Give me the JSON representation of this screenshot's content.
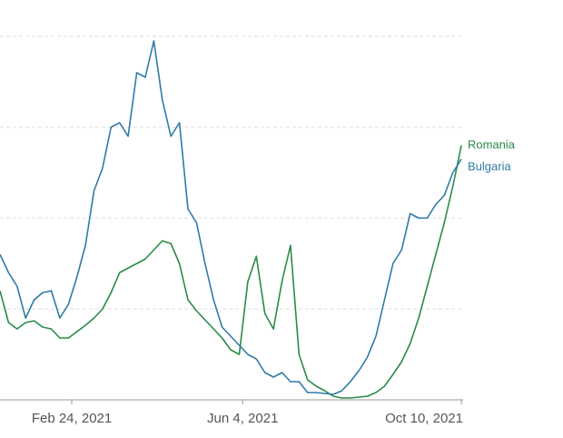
{
  "chart_data": {
    "type": "line",
    "x": [
      "2021-01-13",
      "2021-01-18",
      "2021-01-23",
      "2021-01-28",
      "2021-02-02",
      "2021-02-07",
      "2021-02-12",
      "2021-02-17",
      "2021-02-22",
      "2021-02-27",
      "2021-03-04",
      "2021-03-09",
      "2021-03-14",
      "2021-03-19",
      "2021-03-24",
      "2021-03-29",
      "2021-04-03",
      "2021-04-08",
      "2021-04-13",
      "2021-04-18",
      "2021-04-23",
      "2021-04-28",
      "2021-05-03",
      "2021-05-08",
      "2021-05-13",
      "2021-05-18",
      "2021-05-23",
      "2021-05-28",
      "2021-06-02",
      "2021-06-07",
      "2021-06-12",
      "2021-06-17",
      "2021-06-22",
      "2021-06-27",
      "2021-07-02",
      "2021-07-07",
      "2021-07-12",
      "2021-07-17",
      "2021-07-22",
      "2021-07-27",
      "2021-08-01",
      "2021-08-06",
      "2021-08-11",
      "2021-08-16",
      "2021-08-21",
      "2021-08-26",
      "2021-08-31",
      "2021-09-05",
      "2021-09-10",
      "2021-09-15",
      "2021-09-20",
      "2021-09-25",
      "2021-09-30",
      "2021-10-05",
      "2021-10-10"
    ],
    "series": [
      {
        "name": "Romania",
        "color": "#2a8a4a",
        "values": [
          1.2,
          0.85,
          0.78,
          0.85,
          0.87,
          0.8,
          0.78,
          0.68,
          0.68,
          0.75,
          0.82,
          0.9,
          1.0,
          1.18,
          1.4,
          1.45,
          1.5,
          1.55,
          1.65,
          1.75,
          1.72,
          1.5,
          1.1,
          0.98,
          0.88,
          0.78,
          0.68,
          0.55,
          0.5,
          1.3,
          1.58,
          0.95,
          0.78,
          1.3,
          1.7,
          0.5,
          0.22,
          0.15,
          0.1,
          0.04,
          0.02,
          0.02,
          0.03,
          0.04,
          0.08,
          0.15,
          0.28,
          0.42,
          0.62,
          0.9,
          1.25,
          1.6,
          1.95,
          2.35,
          2.8
        ]
      },
      {
        "name": "Bulgaria",
        "color": "#2f7ba6",
        "values": [
          1.6,
          1.4,
          1.25,
          0.9,
          1.1,
          1.18,
          1.2,
          0.9,
          1.05,
          1.35,
          1.7,
          2.3,
          2.55,
          3.0,
          3.05,
          2.9,
          3.6,
          3.55,
          3.95,
          3.3,
          2.9,
          3.05,
          2.1,
          1.95,
          1.5,
          1.1,
          0.8,
          0.7,
          0.6,
          0.5,
          0.45,
          0.3,
          0.25,
          0.3,
          0.2,
          0.2,
          0.08,
          0.08,
          0.07,
          0.06,
          0.1,
          0.2,
          0.32,
          0.47,
          0.7,
          1.1,
          1.5,
          1.65,
          2.05,
          2.0,
          2.0,
          2.15,
          2.25,
          2.5,
          2.65
        ]
      }
    ],
    "xlim": [
      "2021-01-13",
      "2021-10-11"
    ],
    "xticks": [
      {
        "value": "2021-02-24",
        "label": "Feb 24, 2021"
      },
      {
        "value": "2021-06-04",
        "label": "Jun 4, 2021"
      },
      {
        "value": "2021-10-10",
        "label": "Oct 10, 2021"
      }
    ],
    "ylim": [
      0,
      4
    ],
    "yticks": [
      0,
      1,
      2,
      3,
      4
    ],
    "grid": true
  }
}
